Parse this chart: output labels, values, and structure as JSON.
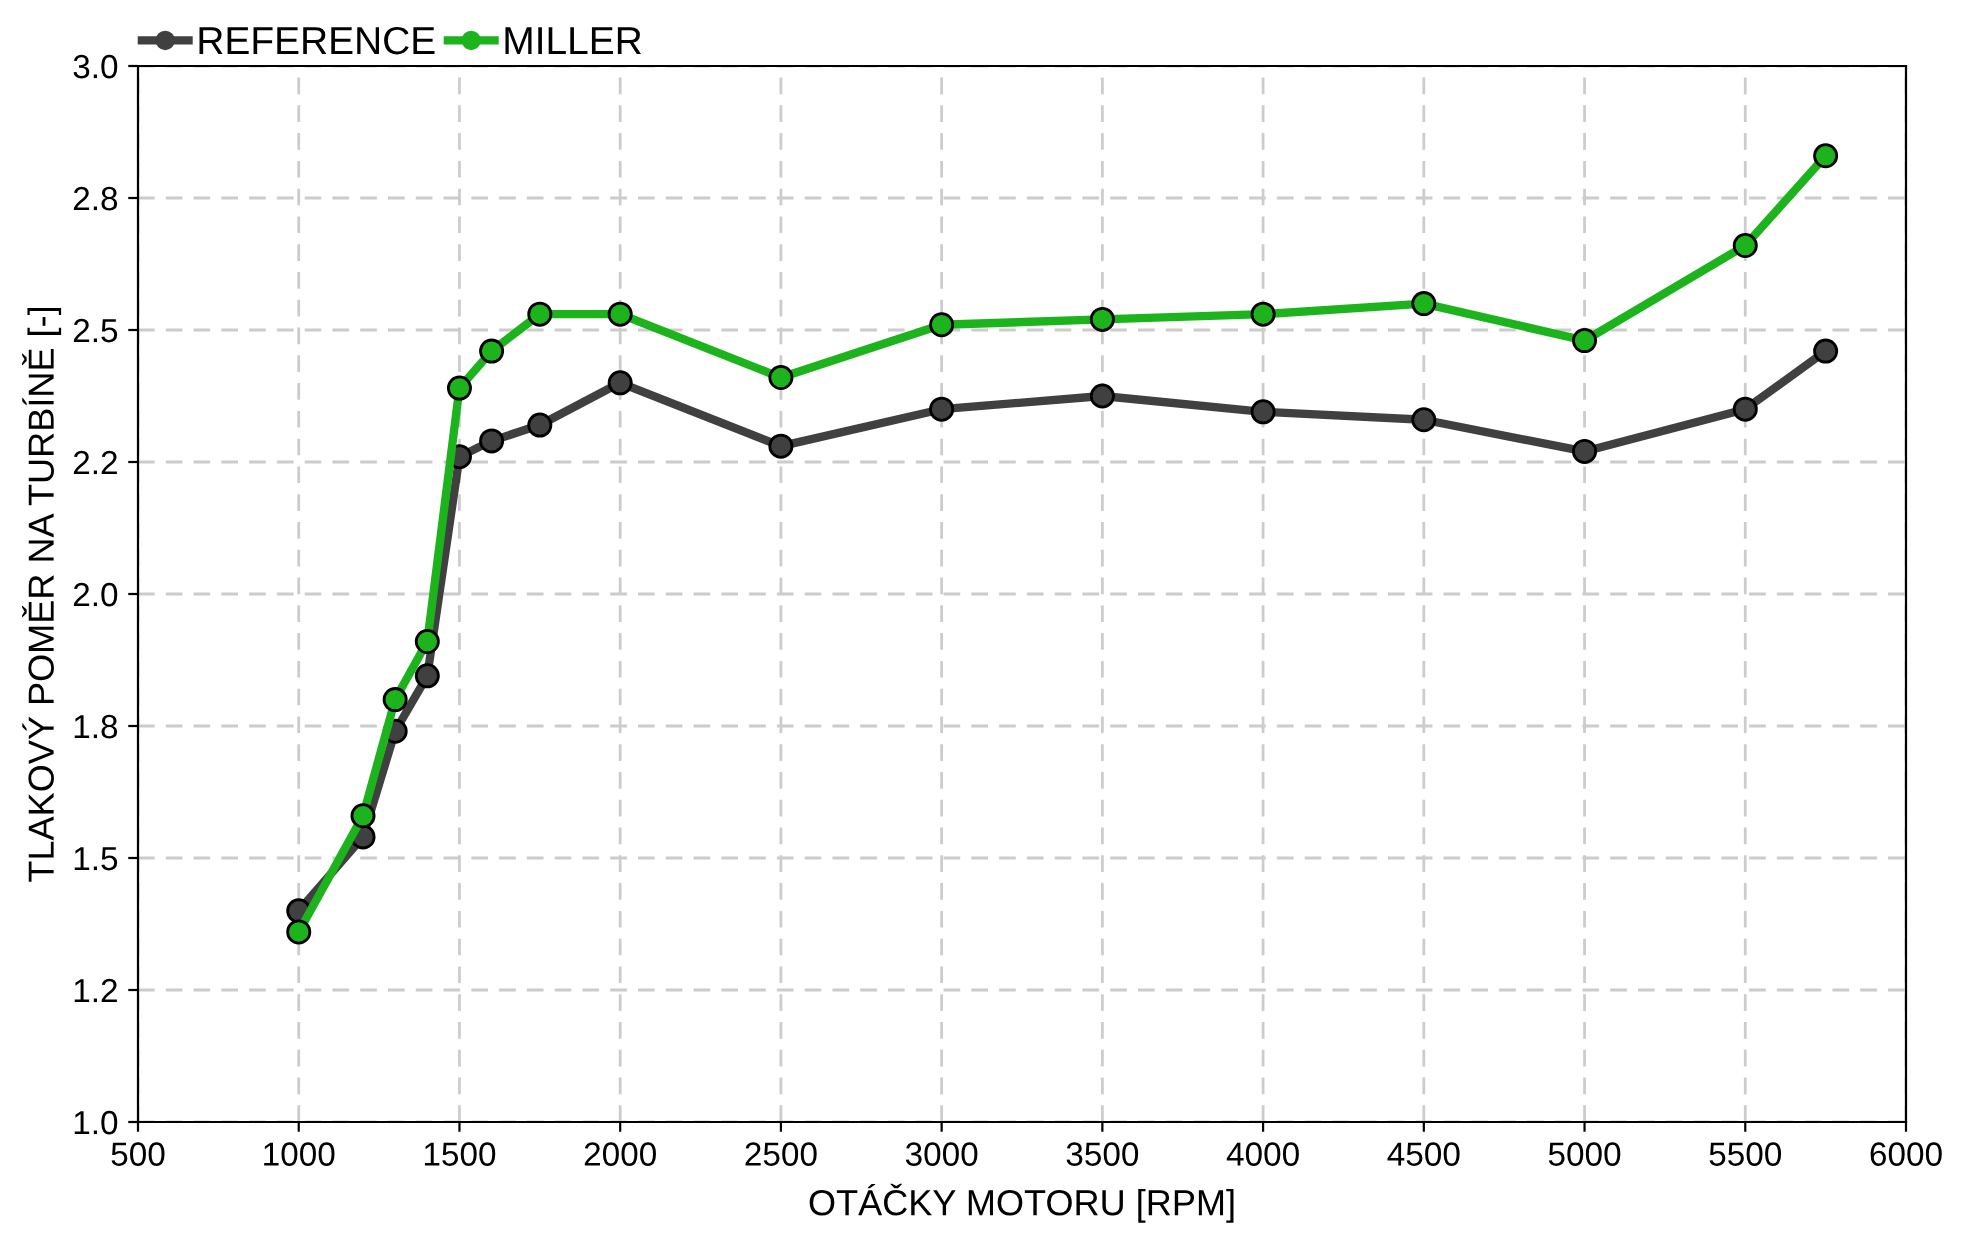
{
  "chart_data": {
    "type": "line",
    "xlabel": "OTÁČKY MOTORU [RPM]",
    "ylabel": "TLAKOVÝ POMĚR NA TURBÍNĚ [-]",
    "x": [
      1000,
      1200,
      1300,
      1400,
      1500,
      1600,
      1750,
      2000,
      2500,
      3000,
      3500,
      4000,
      4500,
      5000,
      5500,
      5750
    ],
    "series": [
      {
        "name": "REFERENCE",
        "color": "#404040",
        "values": [
          1.4,
          1.54,
          1.74,
          1.845,
          2.26,
          2.29,
          2.32,
          2.4,
          2.28,
          2.35,
          2.375,
          2.345,
          2.33,
          2.27,
          2.35,
          2.46
        ]
      },
      {
        "name": "MILLER",
        "color": "#1db31d",
        "values": [
          1.36,
          1.58,
          1.8,
          1.91,
          2.39,
          2.46,
          2.53,
          2.53,
          2.41,
          2.51,
          2.52,
          2.53,
          2.55,
          2.48,
          2.66,
          2.83
        ]
      }
    ],
    "xlim": [
      500,
      6000
    ],
    "xticks": [
      500,
      1000,
      1500,
      2000,
      2500,
      3000,
      3500,
      4000,
      4500,
      5000,
      5500,
      6000
    ],
    "ylim": [
      1.0,
      3.0
    ],
    "yticks": [
      {
        "value": 1.0,
        "label": "1.0"
      },
      {
        "value": 1.25,
        "label": "1.2"
      },
      {
        "value": 1.5,
        "label": "1.5"
      },
      {
        "value": 1.75,
        "label": "1.8"
      },
      {
        "value": 2.0,
        "label": "2.0"
      },
      {
        "value": 2.25,
        "label": "2.2"
      },
      {
        "value": 2.5,
        "label": "2.5"
      },
      {
        "value": 2.75,
        "label": "2.8"
      },
      {
        "value": 3.0,
        "label": "3.0"
      }
    ],
    "grid": true,
    "legend": "top left",
    "marker": "circle",
    "line_style": "solid"
  }
}
